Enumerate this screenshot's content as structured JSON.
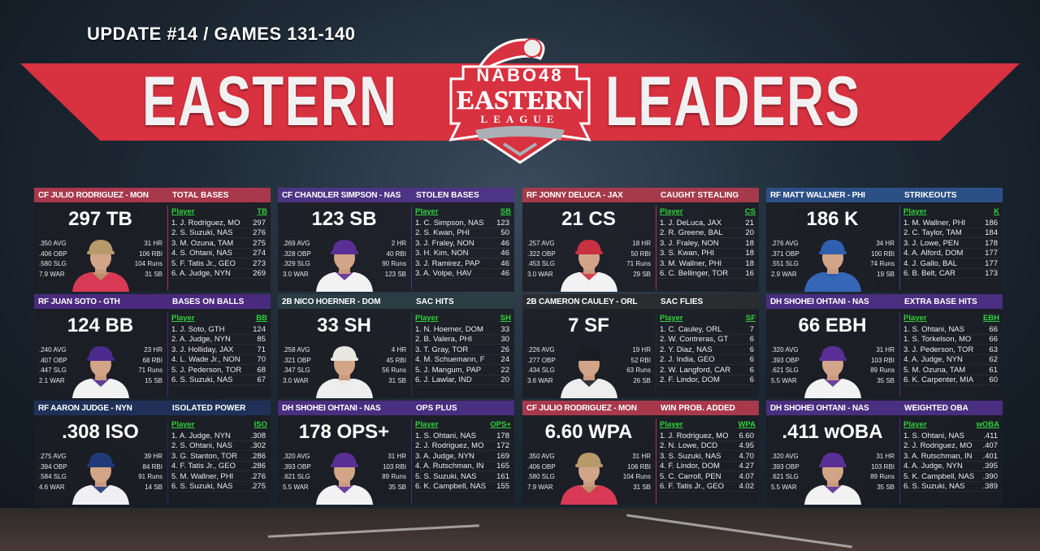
{
  "header": {
    "update": "UPDATE #14 / GAMES 131-140",
    "word_left": "EASTERN",
    "word_right": "LEADERS",
    "logo": {
      "top": "NABO48",
      "main": "EASTERN",
      "sub": "LEAGUE"
    },
    "banner_color": "#d8313f"
  },
  "cards": [
    {
      "player": "CF JULIO RODRIGUEZ - MON",
      "category": "TOTAL BASES",
      "big": "297 TB",
      "header_color": "#a8384c",
      "cap": "#b79a6a",
      "jersey": "#d83a55",
      "left": [
        ".350 AVG",
        ".406 OBP",
        ".580 SLG",
        "7.9 WAR"
      ],
      "right": [
        "31 HR",
        "106 RBI",
        "104 Runs",
        "31 SB"
      ],
      "col_player": "Player",
      "col_stat": "TB",
      "rows": [
        {
          "name": "1. J. Rodriguez, MO",
          "value": "297"
        },
        {
          "name": "2. S. Suzuki, NAS",
          "value": "276"
        },
        {
          "name": "3. M. Ozuna, TAM",
          "value": "275"
        },
        {
          "name": "4. S. Ohtani, NAS",
          "value": "274"
        },
        {
          "name": "5. F. Tatis Jr., GEO",
          "value": "273"
        },
        {
          "name": "6. A. Judge, NYN",
          "value": "269"
        }
      ]
    },
    {
      "player": "CF CHANDLER SIMPSON - NAS",
      "category": "STOLEN BASES",
      "big": "123 SB",
      "header_color": "#4d3484",
      "cap": "#5a2f95",
      "jersey": "#f2f2f2",
      "left": [
        ".269 AVG",
        ".328 OBP",
        ".329 SLG",
        "3.0 WAR"
      ],
      "right": [
        "2 HR",
        "40 RBI",
        "90 Runs",
        "123 SB"
      ],
      "col_player": "Player",
      "col_stat": "SB",
      "rows": [
        {
          "name": "1. C. Simpson, NAS",
          "value": "123"
        },
        {
          "name": "2. S. Kwan, PHI",
          "value": "50"
        },
        {
          "name": "3. J. Fraley, NON",
          "value": "46"
        },
        {
          "name": "3. H. Kim, NON",
          "value": "46"
        },
        {
          "name": "3. J. Ramirez, PAP",
          "value": "46"
        },
        {
          "name": "3. A. Volpe, HAV",
          "value": "46"
        }
      ]
    },
    {
      "player": "RF JONNY DELUCA - JAX",
      "category": "CAUGHT STEALING",
      "big": "21 CS",
      "header_color": "#a53a4a",
      "cap": "#c8313f",
      "jersey": "#f2f2f2",
      "left": [
        ".257 AVG",
        ".322 OBP",
        ".453 SLG",
        "3.0 WAR"
      ],
      "right": [
        "18 HR",
        "50 RBI",
        "71 Runs",
        "29 SB"
      ],
      "col_player": "Player",
      "col_stat": "CS",
      "rows": [
        {
          "name": "1. J. DeLuca, JAX",
          "value": "21"
        },
        {
          "name": "2. R. Greene, BAL",
          "value": "20"
        },
        {
          "name": "3. J. Fraley, NON",
          "value": "18"
        },
        {
          "name": "3. S. Kwan, PHI",
          "value": "18"
        },
        {
          "name": "3. M. Wallner, PHI",
          "value": "18"
        },
        {
          "name": "6. C. Bellinger, TOR",
          "value": "16"
        }
      ]
    },
    {
      "player": "RF MATT WALLNER - PHI",
      "category": "STRIKEOUTS",
      "big": "186 K",
      "header_color": "#2c4f86",
      "cap": "#2f5fae",
      "jersey": "#3566b8",
      "left": [
        ".276 AVG",
        ".371 OBP",
        ".551 SLG",
        "2.9 WAR"
      ],
      "right": [
        "34 HR",
        "100 RBI",
        "74 Runs",
        "19 SB"
      ],
      "col_player": "Player",
      "col_stat": "K",
      "rows": [
        {
          "name": "1. M. Wallner, PHI",
          "value": "186"
        },
        {
          "name": "2. C. Taylor, TAM",
          "value": "184"
        },
        {
          "name": "3. J. Lowe, PEN",
          "value": "178"
        },
        {
          "name": "4. A. Alford, DOM",
          "value": "177"
        },
        {
          "name": "4. J. Gallo, BAL",
          "value": "177"
        },
        {
          "name": "6. B. Belt, CAR",
          "value": "173"
        }
      ]
    },
    {
      "player": "RF JUAN SOTO - GTH",
      "category": "BASES ON BALLS",
      "big": "124 BB",
      "header_color": "#4a2a7e",
      "cap": "#4b2a8e",
      "jersey": "#f2f2f2",
      "left": [
        ".240 AVG",
        ".407 OBP",
        ".447 SLG",
        "2.1 WAR"
      ],
      "right": [
        "23 HR",
        "68 RBI",
        "71 Runs",
        "15 SB"
      ],
      "col_player": "Player",
      "col_stat": "BB",
      "rows": [
        {
          "name": "1. J. Soto, GTH",
          "value": "124"
        },
        {
          "name": "2. A. Judge, NYN",
          "value": "85"
        },
        {
          "name": "3. J. Holliday, JAX",
          "value": "71"
        },
        {
          "name": "4. L. Wade Jr., NON",
          "value": "70"
        },
        {
          "name": "5. J. Pederson, TOR",
          "value": "68"
        },
        {
          "name": "6. S. Suzuki, NAS",
          "value": "67"
        }
      ]
    },
    {
      "player": "2B NICO HOERNER - DOM",
      "category": "SAC HITS",
      "big": "33 SH",
      "header_color": "#2a3c44",
      "cap": "#e8e8e0",
      "jersey": "#eeeeee",
      "left": [
        ".258 AVG",
        ".321 OBP",
        ".347 SLG",
        "3.0 WAR"
      ],
      "right": [
        "4 HR",
        "45 RBI",
        "56 Runs",
        "31 SB"
      ],
      "col_player": "Player",
      "col_stat": "SH",
      "rows": [
        {
          "name": "1. N. Hoerner, DOM",
          "value": "33"
        },
        {
          "name": "2. B. Valera, PHI",
          "value": "30"
        },
        {
          "name": "3. T. Gray, TOR",
          "value": "26"
        },
        {
          "name": "4. M. Schuemann, F",
          "value": "24"
        },
        {
          "name": "5. J. Mangum, PAP",
          "value": "22"
        },
        {
          "name": "6. J. Lawlar, IND",
          "value": "20"
        }
      ]
    },
    {
      "player": "2B CAMERON CAULEY - ORL",
      "category": "SAC FLIES",
      "big": "7 SF",
      "header_color": "#2a2c30",
      "cap": "#1c1c22",
      "jersey": "#eeeeee",
      "left": [
        ".226 AVG",
        ".277 OBP",
        ".434 SLG",
        "3.6 WAR"
      ],
      "right": [
        "19 HR",
        "52 RBI",
        "63 Runs",
        "26 SB"
      ],
      "col_player": "Player",
      "col_stat": "SF",
      "rows": [
        {
          "name": "1. C. Cauley, ORL",
          "value": "7"
        },
        {
          "name": "2. W. Contreras, GT",
          "value": "6"
        },
        {
          "name": "2. Y. Diaz, NAS",
          "value": "6"
        },
        {
          "name": "2. J. India, GEO",
          "value": "6"
        },
        {
          "name": "2. W. Langford, CAR",
          "value": "6"
        },
        {
          "name": "2. F. Lindor, DOM",
          "value": "6"
        }
      ]
    },
    {
      "player": "DH SHOHEI OHTANI - NAS",
      "category": "EXTRA BASE HITS",
      "big": "66 EBH",
      "header_color": "#4a2e80",
      "cap": "#5a2f95",
      "jersey": "#f2f2f2",
      "left": [
        ".320 AVG",
        ".393 OBP",
        ".621 SLG",
        "5.5 WAR"
      ],
      "right": [
        "31 HR",
        "103 RBI",
        "89 Runs",
        "35 SB"
      ],
      "col_player": "Player",
      "col_stat": "EBH",
      "rows": [
        {
          "name": "1. S. Ohtani, NAS",
          "value": "66"
        },
        {
          "name": "1. S. Torkelson, MO",
          "value": "66"
        },
        {
          "name": "3. J. Pederson, TOR",
          "value": "63"
        },
        {
          "name": "4. A. Judge, NYN",
          "value": "62"
        },
        {
          "name": "5. M. Ozuna, TAM",
          "value": "61"
        },
        {
          "name": "6. K. Carpenter, MIA",
          "value": "60"
        }
      ]
    },
    {
      "player": "RF AARON JUDGE - NYN",
      "category": "ISOLATED POWER",
      "big": ".308 ISO",
      "header_color": "#1f3158",
      "cap": "#1f3a78",
      "jersey": "#f0f0f4",
      "left": [
        ".275 AVG",
        ".394 OBP",
        ".584 SLG",
        "4.6 WAR"
      ],
      "right": [
        "39 HR",
        "84 RBI",
        "91 Runs",
        "14 SB"
      ],
      "col_player": "Player",
      "col_stat": "ISO",
      "rows": [
        {
          "name": "1. A. Judge, NYN",
          "value": ".308"
        },
        {
          "name": "2. S. Ohtani, NAS",
          "value": ".302"
        },
        {
          "name": "3. G. Stanton, TOR",
          "value": ".286"
        },
        {
          "name": "4. F. Tatis Jr., GEO",
          "value": ".286"
        },
        {
          "name": "5. M. Wallner, PHI",
          "value": ".276"
        },
        {
          "name": "6. S. Suzuki, NAS",
          "value": ".275"
        }
      ]
    },
    {
      "player": "DH SHOHEI OHTANI - NAS",
      "category": "OPS PLUS",
      "big": "178 OPS+",
      "header_color": "#4a2e80",
      "cap": "#5a2f95",
      "jersey": "#f2f2f2",
      "left": [
        ".320 AVG",
        ".393 OBP",
        ".621 SLG",
        "5.5 WAR"
      ],
      "right": [
        "31 HR",
        "103 RBI",
        "89 Runs",
        "35 SB"
      ],
      "col_player": "Player",
      "col_stat": "OPS+",
      "rows": [
        {
          "name": "1. S. Ohtani, NAS",
          "value": "178"
        },
        {
          "name": "2. J. Rodriguez, MO",
          "value": "172"
        },
        {
          "name": "3. A. Judge, NYN",
          "value": "169"
        },
        {
          "name": "4. A. Rutschman, IN",
          "value": "165"
        },
        {
          "name": "5. S. Suzuki, NAS",
          "value": "161"
        },
        {
          "name": "6. K. Campbell, NAS",
          "value": "155"
        }
      ]
    },
    {
      "player": "CF JULIO RODRIGUEZ - MON",
      "category": "WIN PROB. ADDED",
      "big": "6.60 WPA",
      "header_color": "#a8384c",
      "cap": "#b79a6a",
      "jersey": "#d83a55",
      "left": [
        ".350 AVG",
        ".406 OBP",
        ".580 SLG",
        "7.9 WAR"
      ],
      "right": [
        "31 HR",
        "106 RBI",
        "104 Runs",
        "31 SB"
      ],
      "col_player": "Player",
      "col_stat": "WPA",
      "rows": [
        {
          "name": "1. J. Rodriguez, MO",
          "value": "6.60"
        },
        {
          "name": "2. N. Lowe, DCD",
          "value": "4.95"
        },
        {
          "name": "3. S. Suzuki, NAS",
          "value": "4.70"
        },
        {
          "name": "4. F. Lindor, DOM",
          "value": "4.27"
        },
        {
          "name": "5. C. Carroll, PEN",
          "value": "4.07"
        },
        {
          "name": "6. F. Tatis Jr., GEO",
          "value": "4.02"
        }
      ]
    },
    {
      "player": "DH SHOHEI OHTANI - NAS",
      "category": "WEIGHTED OBA",
      "big": ".411 wOBA",
      "header_color": "#4a2e80",
      "cap": "#5a2f95",
      "jersey": "#f2f2f2",
      "left": [
        ".320 AVG",
        ".393 OBP",
        ".621 SLG",
        "5.5 WAR"
      ],
      "right": [
        "31 HR",
        "103 RBI",
        "89 Runs",
        "35 SB"
      ],
      "col_player": "Player",
      "col_stat": "wOBA",
      "rows": [
        {
          "name": "1. S. Ohtani, NAS",
          "value": ".411"
        },
        {
          "name": "2. J. Rodriguez, MO",
          "value": ".407"
        },
        {
          "name": "3. A. Rutschman, IN",
          "value": ".401"
        },
        {
          "name": "4. A. Judge, NYN",
          "value": ".395"
        },
        {
          "name": "5. K. Campbell, NAS",
          "value": ".390"
        },
        {
          "name": "6. S. Suzuki, NAS",
          "value": ".389"
        }
      ]
    }
  ]
}
